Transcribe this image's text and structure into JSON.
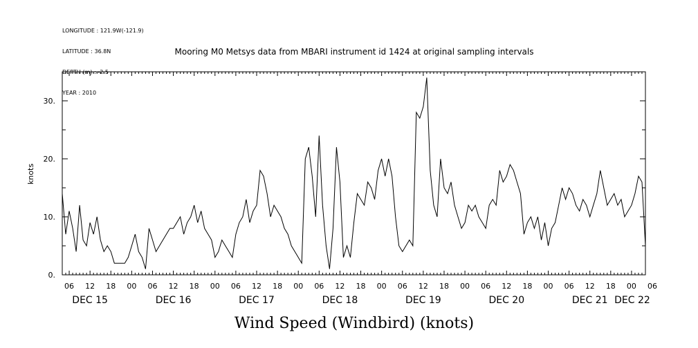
{
  "header": {
    "longitude": "LONGITUDE : 121.9W(-121.9)",
    "latitude": "LATITUDE : 36.8N",
    "depth": "DEPTH (m) : -2.5",
    "year": "YEAR : 2010"
  },
  "chart_data": {
    "type": "line",
    "title": "Mooring M0 Metsys data from MBARI instrument id 1424 at original sampling intervals",
    "xlabel": "Wind Speed (Windbird) (knots)",
    "ylabel": "knots",
    "ylim": [
      0,
      35
    ],
    "xlim_hours": [
      4,
      172
    ],
    "y_ticks": [
      {
        "value": 0,
        "label": "0."
      },
      {
        "value": 10,
        "label": "10."
      },
      {
        "value": 20,
        "label": "20."
      },
      {
        "value": 30,
        "label": "30."
      }
    ],
    "hour_ticks": [
      "06",
      "12",
      "18",
      "00",
      "06",
      "12",
      "18",
      "00",
      "06",
      "12",
      "18",
      "00",
      "06",
      "12",
      "18",
      "00",
      "06",
      "12",
      "18",
      "00",
      "06",
      "12",
      "18",
      "00",
      "06",
      "12",
      "18",
      "00",
      "06"
    ],
    "day_labels": [
      "DEC 15",
      "DEC 16",
      "DEC 17",
      "DEC 18",
      "DEC 19",
      "DEC 20",
      "DEC 21",
      "DEC 22"
    ],
    "grid": false,
    "series": [
      {
        "x": [
          4,
          5,
          6,
          7,
          8,
          9,
          10,
          11,
          12,
          13,
          14,
          15,
          16,
          17,
          18,
          19,
          20,
          21,
          22,
          23,
          24,
          25,
          26,
          27,
          28,
          29,
          30,
          31,
          32,
          33,
          34,
          35,
          36,
          37,
          38,
          39,
          40,
          41,
          42,
          43,
          44,
          45,
          46,
          47,
          48,
          49,
          50,
          51,
          52,
          53,
          54,
          55,
          56,
          57,
          58,
          59,
          60,
          61,
          62,
          63,
          64,
          65,
          66,
          67,
          68,
          69,
          70,
          71,
          72,
          73,
          74,
          75,
          76,
          77,
          78,
          79,
          80,
          81,
          82,
          83,
          84,
          85,
          86,
          87,
          88,
          89,
          90,
          91,
          92,
          93,
          94,
          95,
          96,
          97,
          98,
          99,
          100,
          101,
          102,
          103,
          104,
          105,
          106,
          107,
          108,
          109,
          110,
          111,
          112,
          113,
          114,
          115,
          116,
          117,
          118,
          119,
          120,
          121,
          122,
          123,
          124,
          125,
          126,
          127,
          128,
          129,
          130,
          131,
          132,
          133,
          134,
          135,
          136,
          137,
          138,
          139,
          140,
          141,
          142,
          143,
          144,
          145,
          146,
          147,
          148,
          149,
          150,
          151,
          152,
          153,
          154,
          155,
          156,
          157,
          158,
          159,
          160,
          161,
          162,
          163,
          164,
          165,
          166,
          167,
          168,
          169,
          170,
          171,
          172
        ],
        "y": [
          14,
          7,
          11,
          8,
          4,
          12,
          6,
          5,
          9,
          7,
          10,
          6,
          4,
          5,
          4,
          2,
          2,
          2,
          2,
          3,
          5,
          7,
          4,
          3,
          1,
          8,
          6,
          4,
          5,
          6,
          7,
          8,
          8,
          9,
          10,
          7,
          9,
          10,
          12,
          9,
          11,
          8,
          7,
          6,
          3,
          4,
          6,
          5,
          4,
          3,
          7,
          9,
          10,
          13,
          9,
          11,
          12,
          18,
          17,
          14,
          10,
          12,
          11,
          10,
          8,
          7,
          5,
          4,
          3,
          2,
          20,
          22,
          17,
          10,
          24,
          12,
          5,
          1,
          8,
          22,
          16,
          3,
          5,
          3,
          9,
          14,
          13,
          12,
          16,
          15,
          13,
          18,
          20,
          17,
          20,
          17,
          10,
          5,
          4,
          5,
          6,
          5,
          28,
          27,
          29,
          34,
          18,
          12,
          10,
          20,
          15,
          14,
          16,
          12,
          10,
          8,
          9,
          12,
          11,
          12,
          10,
          9,
          8,
          12,
          13,
          12,
          18,
          16,
          17,
          19,
          18,
          16,
          14,
          7,
          9,
          10,
          8,
          10,
          6,
          9,
          5,
          8,
          9,
          12,
          15,
          13,
          15,
          14,
          12,
          11,
          13,
          12,
          10,
          12,
          14,
          18,
          15,
          12,
          13,
          14,
          12,
          13,
          10,
          11,
          12,
          14,
          17,
          16,
          5
        ]
      }
    ]
  }
}
